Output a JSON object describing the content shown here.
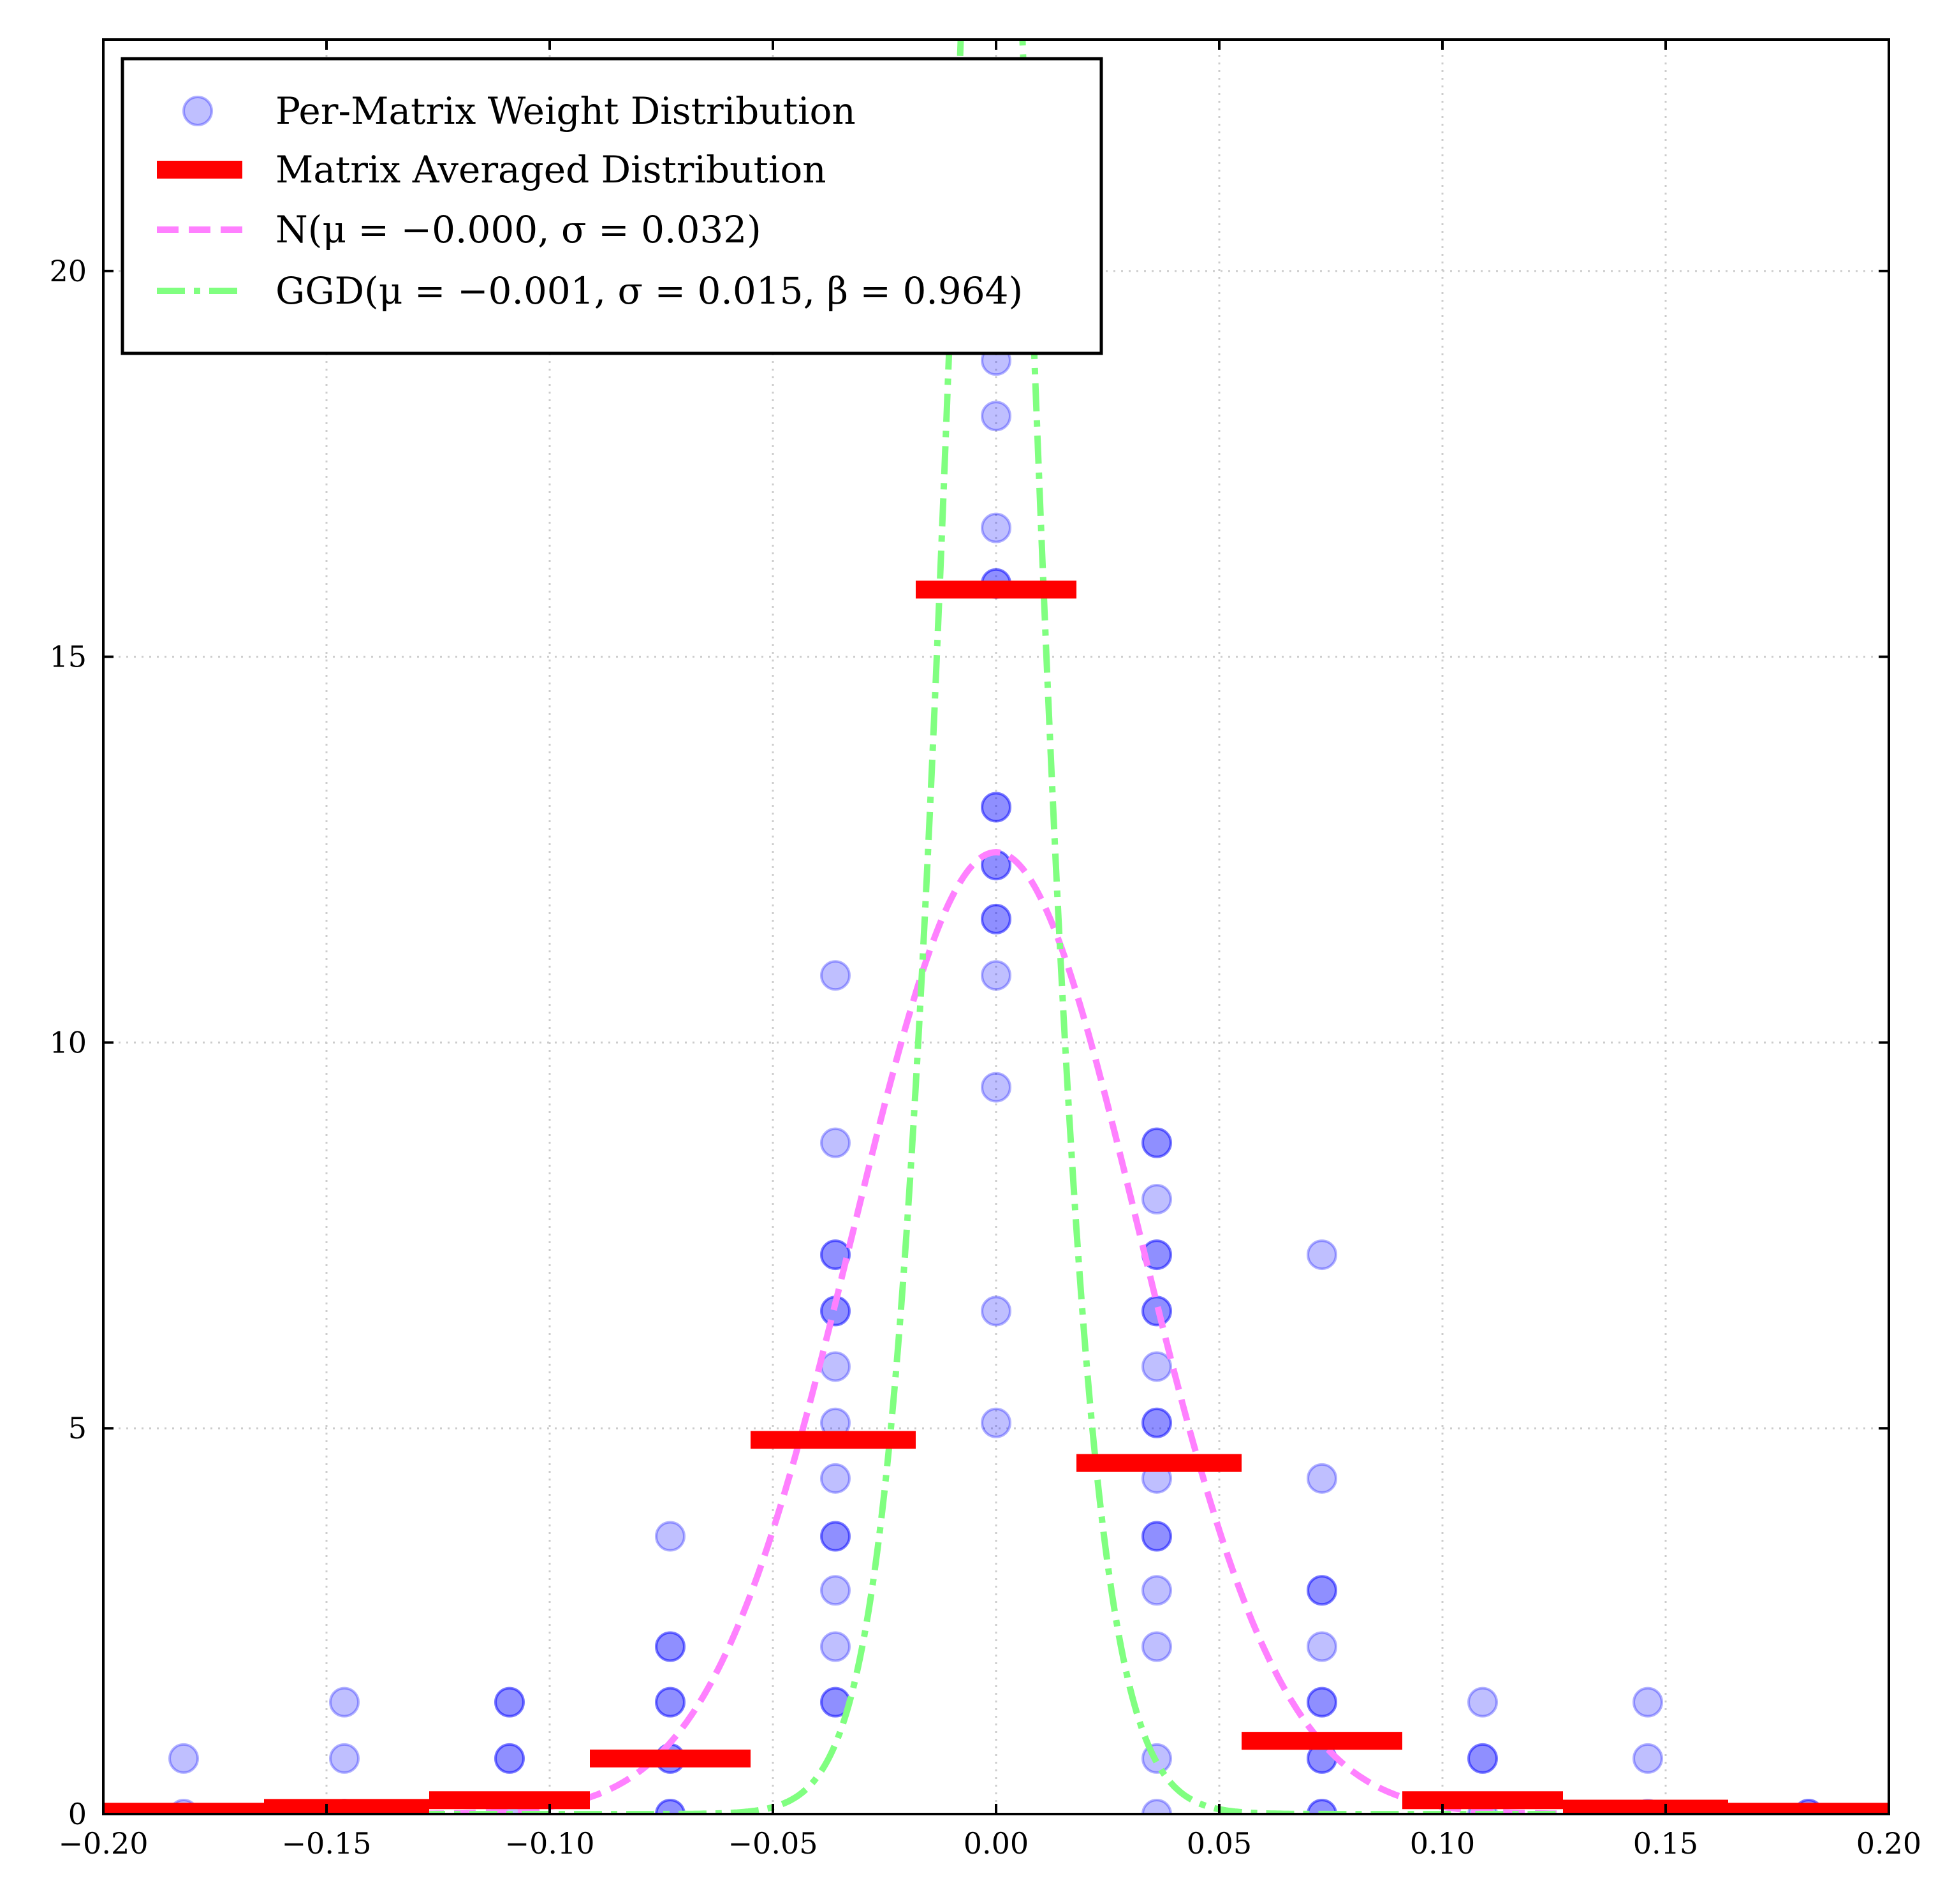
{
  "chart_data": {
    "type": "scatter",
    "title": "",
    "xlabel": "",
    "ylabel": "",
    "xlim": [
      -0.2,
      0.2
    ],
    "ylim": [
      0,
      23
    ],
    "grid": true,
    "legend_position": "top-left",
    "x_ticks": [
      -0.2,
      -0.15,
      -0.1,
      -0.05,
      0.0,
      0.05,
      0.1,
      0.15,
      0.2
    ],
    "x_tick_labels": [
      "−0.20",
      "−0.15",
      "−0.10",
      "−0.05",
      "0.00",
      "0.05",
      "0.10",
      "0.15",
      "0.20"
    ],
    "y_ticks": [
      0,
      5,
      10,
      15,
      20
    ],
    "y_tick_labels": [
      "0",
      "5",
      "10",
      "15",
      "20"
    ],
    "series": [
      {
        "name": "Per-Matrix Weight Distribution",
        "kind": "scatter",
        "color": "#0000ff",
        "points": [
          {
            "x": -0.182,
            "y": 0.0
          },
          {
            "x": -0.182,
            "y": 0.72
          },
          {
            "x": -0.146,
            "y": 0.0
          },
          {
            "x": -0.146,
            "y": 0.72
          },
          {
            "x": -0.146,
            "y": 1.45
          },
          {
            "x": -0.109,
            "y": 0.0
          },
          {
            "x": -0.109,
            "y": 0.72
          },
          {
            "x": -0.109,
            "y": 0.72
          },
          {
            "x": -0.109,
            "y": 1.45
          },
          {
            "x": -0.109,
            "y": 1.45
          },
          {
            "x": -0.073,
            "y": 0.0
          },
          {
            "x": -0.073,
            "y": 0.0
          },
          {
            "x": -0.073,
            "y": 0.72
          },
          {
            "x": -0.073,
            "y": 0.72
          },
          {
            "x": -0.073,
            "y": 1.45
          },
          {
            "x": -0.073,
            "y": 1.45
          },
          {
            "x": -0.073,
            "y": 2.17
          },
          {
            "x": -0.073,
            "y": 2.17
          },
          {
            "x": -0.073,
            "y": 3.6
          },
          {
            "x": -0.036,
            "y": 1.45
          },
          {
            "x": -0.036,
            "y": 1.45
          },
          {
            "x": -0.036,
            "y": 2.17
          },
          {
            "x": -0.036,
            "y": 2.9
          },
          {
            "x": -0.036,
            "y": 3.6
          },
          {
            "x": -0.036,
            "y": 3.6
          },
          {
            "x": -0.036,
            "y": 4.35
          },
          {
            "x": -0.036,
            "y": 5.07
          },
          {
            "x": -0.036,
            "y": 5.8
          },
          {
            "x": -0.036,
            "y": 6.52
          },
          {
            "x": -0.036,
            "y": 6.52
          },
          {
            "x": -0.036,
            "y": 7.25
          },
          {
            "x": -0.036,
            "y": 7.25
          },
          {
            "x": -0.036,
            "y": 8.7
          },
          {
            "x": -0.036,
            "y": 10.87
          },
          {
            "x": 0.0,
            "y": 5.07
          },
          {
            "x": 0.0,
            "y": 6.52
          },
          {
            "x": 0.0,
            "y": 9.42
          },
          {
            "x": 0.0,
            "y": 10.87
          },
          {
            "x": 0.0,
            "y": 11.6
          },
          {
            "x": 0.0,
            "y": 11.6
          },
          {
            "x": 0.0,
            "y": 12.3
          },
          {
            "x": 0.0,
            "y": 12.3
          },
          {
            "x": 0.0,
            "y": 13.05
          },
          {
            "x": 0.0,
            "y": 13.05
          },
          {
            "x": 0.0,
            "y": 15.95
          },
          {
            "x": 0.0,
            "y": 15.95
          },
          {
            "x": 0.0,
            "y": 16.67
          },
          {
            "x": 0.0,
            "y": 18.12
          },
          {
            "x": 0.0,
            "y": 18.84
          },
          {
            "x": 0.036,
            "y": 0.0
          },
          {
            "x": 0.036,
            "y": 0.72
          },
          {
            "x": 0.036,
            "y": 2.17
          },
          {
            "x": 0.036,
            "y": 2.9
          },
          {
            "x": 0.036,
            "y": 3.6
          },
          {
            "x": 0.036,
            "y": 3.6
          },
          {
            "x": 0.036,
            "y": 4.35
          },
          {
            "x": 0.036,
            "y": 5.07
          },
          {
            "x": 0.036,
            "y": 5.07
          },
          {
            "x": 0.036,
            "y": 5.8
          },
          {
            "x": 0.036,
            "y": 6.52
          },
          {
            "x": 0.036,
            "y": 6.52
          },
          {
            "x": 0.036,
            "y": 7.25
          },
          {
            "x": 0.036,
            "y": 7.25
          },
          {
            "x": 0.036,
            "y": 7.97
          },
          {
            "x": 0.036,
            "y": 8.7
          },
          {
            "x": 0.036,
            "y": 8.7
          },
          {
            "x": 0.073,
            "y": 0.0
          },
          {
            "x": 0.073,
            "y": 0.0
          },
          {
            "x": 0.073,
            "y": 0.72
          },
          {
            "x": 0.073,
            "y": 0.72
          },
          {
            "x": 0.073,
            "y": 1.45
          },
          {
            "x": 0.073,
            "y": 1.45
          },
          {
            "x": 0.073,
            "y": 2.17
          },
          {
            "x": 0.073,
            "y": 2.9
          },
          {
            "x": 0.073,
            "y": 2.9
          },
          {
            "x": 0.073,
            "y": 4.35
          },
          {
            "x": 0.073,
            "y": 7.25
          },
          {
            "x": 0.109,
            "y": 0.0
          },
          {
            "x": 0.109,
            "y": 0.72
          },
          {
            "x": 0.109,
            "y": 0.72
          },
          {
            "x": 0.109,
            "y": 1.45
          },
          {
            "x": 0.146,
            "y": 0.0
          },
          {
            "x": 0.146,
            "y": 0.72
          },
          {
            "x": 0.146,
            "y": 1.45
          },
          {
            "x": 0.182,
            "y": 0.0
          },
          {
            "x": 0.182,
            "y": 0.0
          }
        ]
      },
      {
        "name": "Matrix Averaged Distribution",
        "kind": "step",
        "color": "#ff0000",
        "bins": [
          {
            "x0": -0.2,
            "x1": -0.164,
            "y": 0.03
          },
          {
            "x0": -0.164,
            "x1": -0.127,
            "y": 0.08
          },
          {
            "x0": -0.127,
            "x1": -0.091,
            "y": 0.18
          },
          {
            "x0": -0.091,
            "x1": -0.055,
            "y": 0.72
          },
          {
            "x0": -0.055,
            "x1": -0.018,
            "y": 4.85
          },
          {
            "x0": -0.018,
            "x1": 0.018,
            "y": 15.87
          },
          {
            "x0": 0.018,
            "x1": 0.055,
            "y": 4.55
          },
          {
            "x0": 0.055,
            "x1": 0.091,
            "y": 0.95
          },
          {
            "x0": 0.091,
            "x1": 0.127,
            "y": 0.18
          },
          {
            "x0": 0.127,
            "x1": 0.164,
            "y": 0.07
          },
          {
            "x0": 0.164,
            "x1": 0.2,
            "y": 0.03
          }
        ]
      },
      {
        "name": "N(μ = −0.000, σ = 0.032)",
        "kind": "normal_pdf",
        "color": "#ff80ff",
        "mu": 0.0,
        "sigma": 0.032
      },
      {
        "name": "GGD(μ = −0.001, σ = 0.015, β = 0.964)",
        "kind": "ggd_pdf",
        "color": "#80ff80",
        "mu": -0.001,
        "sigma": 0.015,
        "beta": 0.964,
        "peak": 31.5
      }
    ]
  }
}
